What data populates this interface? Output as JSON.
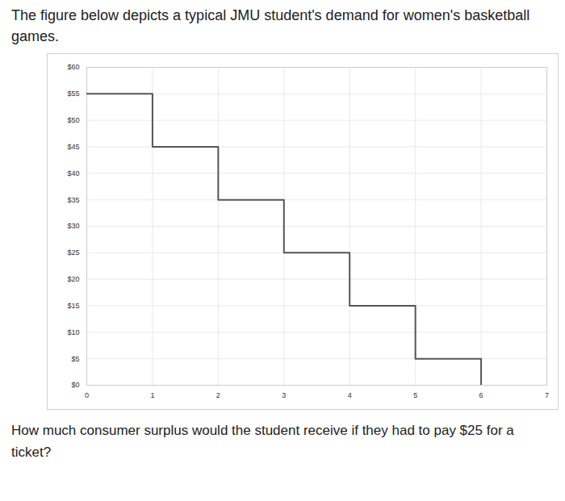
{
  "chart_data": {
    "type": "line",
    "title": "The figure below depicts a typical JMU student's demand for women's basketball games.",
    "caption": "How much consumer surplus would the student receive if they had to pay $25 for a ticket?",
    "x": [
      0,
      1,
      2,
      3,
      4,
      5,
      6
    ],
    "values": [
      55,
      45,
      35,
      25,
      15,
      5,
      0
    ],
    "line_style": "step",
    "color": "#555555",
    "xlim": [
      0,
      7
    ],
    "xticks": [
      0,
      1,
      2,
      3,
      4,
      5,
      6,
      7
    ],
    "ylim": [
      0,
      60
    ],
    "yticks": [
      {
        "value": 0,
        "label": "$0"
      },
      {
        "value": 5,
        "label": "$5"
      },
      {
        "value": 10,
        "label": "$10"
      },
      {
        "value": 15,
        "label": "$15"
      },
      {
        "value": 20,
        "label": "$20"
      },
      {
        "value": 25,
        "label": "$25"
      },
      {
        "value": 30,
        "label": "$30"
      },
      {
        "value": 35,
        "label": "$35"
      },
      {
        "value": 40,
        "label": "$40"
      },
      {
        "value": 45,
        "label": "$45"
      },
      {
        "value": 50,
        "label": "$50"
      },
      {
        "value": 55,
        "label": "$55"
      },
      {
        "value": 60,
        "label": "$60"
      }
    ],
    "grid": true
  }
}
